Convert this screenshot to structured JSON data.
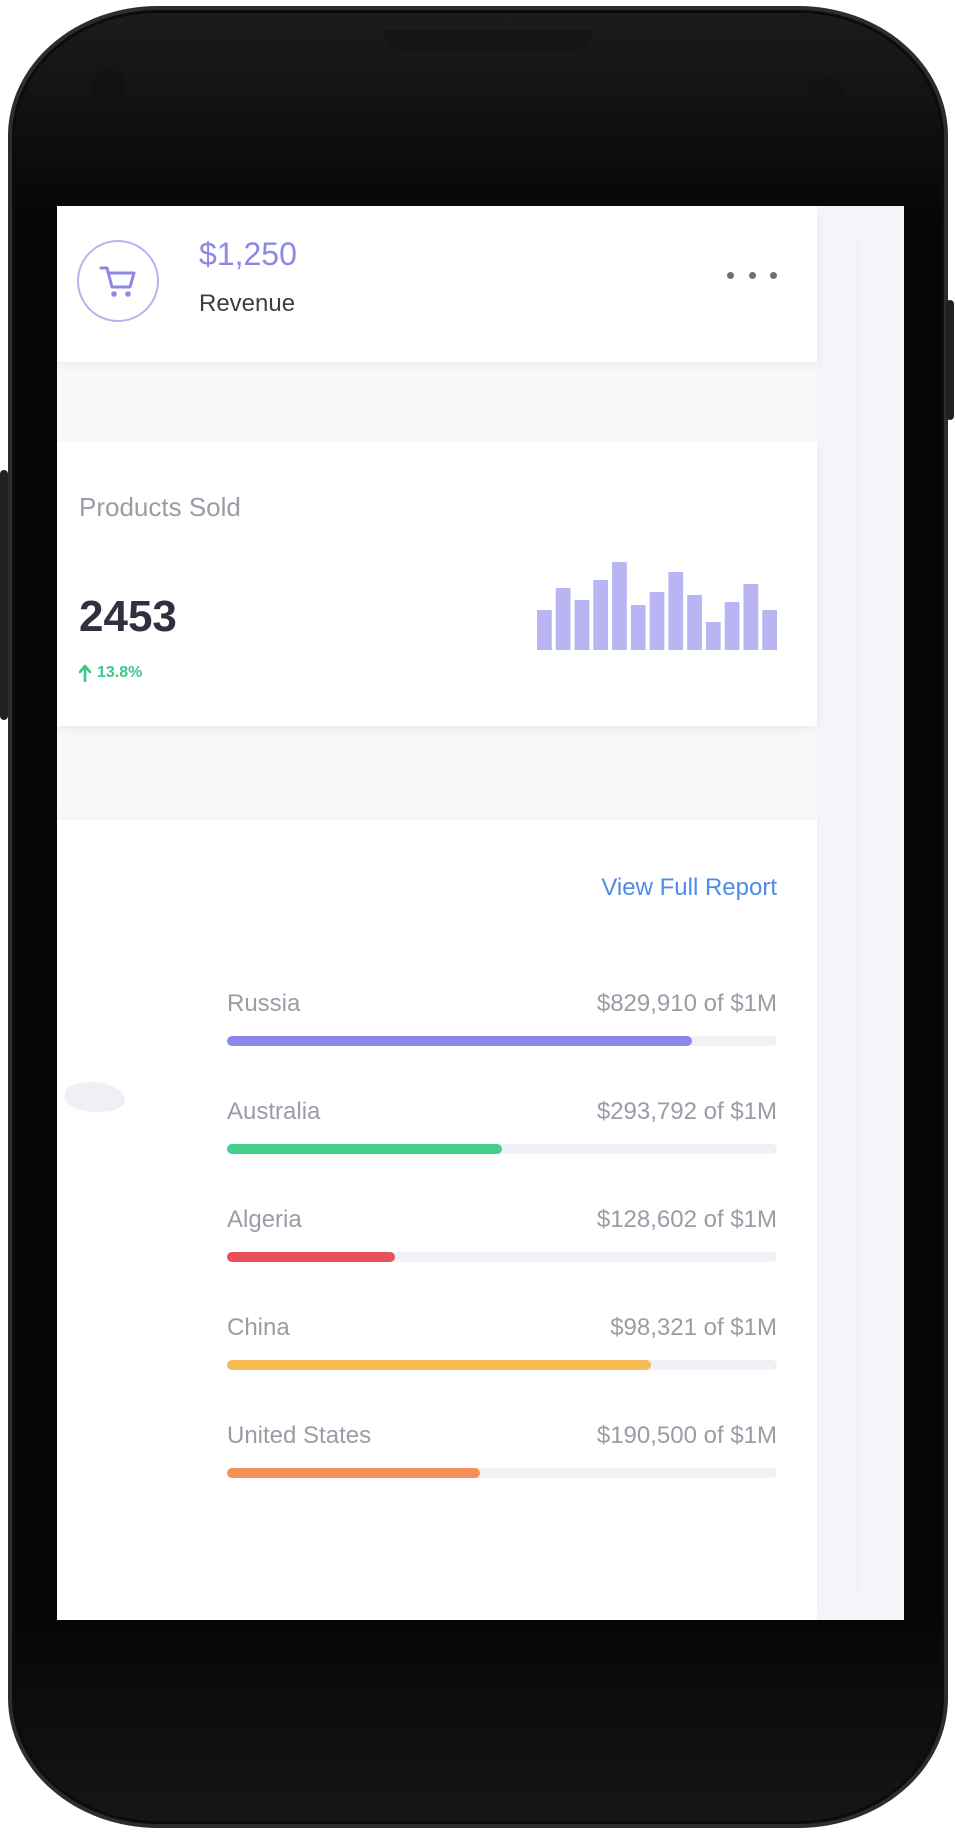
{
  "revenue": {
    "value": "$1,250",
    "label": "Revenue",
    "icon": "cart-icon",
    "accent": "#8d88e4"
  },
  "products": {
    "title": "Products Sold",
    "count": "2453",
    "change": "13.8%",
    "change_color": "#3cc889",
    "bar_color": "#b9b4f2",
    "mini_bars": [
      40,
      62,
      50,
      70,
      88,
      45,
      58,
      78,
      55,
      28,
      48,
      66,
      40
    ]
  },
  "report": {
    "link_label": "View Full Report",
    "countries": [
      {
        "name": "Russia",
        "amount": "$829,910 of $1M",
        "fraction": 0.845,
        "color": "#8d87ea"
      },
      {
        "name": "Australia",
        "amount": "$293,792 of $1M",
        "fraction": 0.5,
        "color": "#45cf8a"
      },
      {
        "name": "Algeria",
        "amount": "$128,602 of $1M",
        "fraction": 0.305,
        "color": "#e8505b"
      },
      {
        "name": "China",
        "amount": "$98,321 of $1M",
        "fraction": 0.77,
        "color": "#f6bb55"
      },
      {
        "name": "United States",
        "amount": "$190,500 of $1M",
        "fraction": 0.46,
        "color": "#f49159"
      }
    ]
  }
}
